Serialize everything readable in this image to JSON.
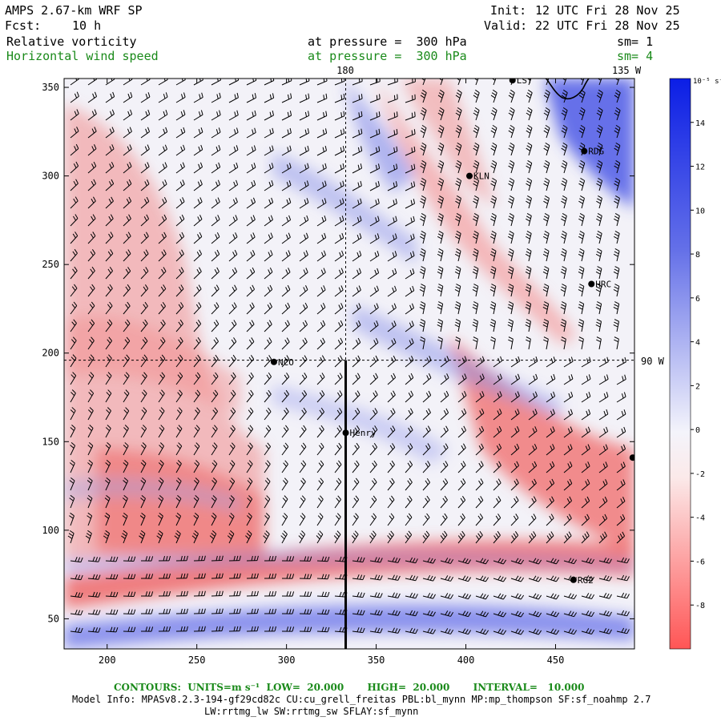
{
  "header": {
    "model_title": "AMPS 2.67-km WRF SP",
    "forecast_label": "Fcst:",
    "forecast_hours": "10 h",
    "init_label": "Init:",
    "init_time": "12 UTC Fri 28 Nov 25",
    "valid_label": "Valid:",
    "valid_time": "22 UTC Fri 28 Nov 25",
    "field1_name": "Relative vorticity",
    "field1_level": "at pressure =  300 hPa",
    "field1_smooth": "sm= 1",
    "field2_name": "Horizontal wind speed",
    "field2_level": "at pressure =  300 hPa",
    "field2_smooth": "sm= 4"
  },
  "map": {
    "lon_label_180": "180",
    "lon_label_135w": "135 W",
    "lon_label_90w": "90 W",
    "x_ticks": [
      "200",
      "250",
      "300",
      "350",
      "400",
      "450"
    ],
    "y_ticks": [
      "350",
      "300",
      "250",
      "200",
      "150",
      "100",
      "50"
    ],
    "x_range": [
      176,
      494
    ],
    "y_range": [
      33,
      355
    ],
    "stations": [
      {
        "name": "LST",
        "x": 426,
        "y": 354
      },
      {
        "name": "RDG",
        "x": 466,
        "y": 314
      },
      {
        "name": "KLN",
        "x": 402,
        "y": 300
      },
      {
        "name": "HRC",
        "x": 470,
        "y": 239
      },
      {
        "name": "NCO",
        "x": 293,
        "y": 195
      },
      {
        "name": "Henry",
        "x": 333,
        "y": 155
      },
      {
        "name": "",
        "x": 493,
        "y": 141
      },
      {
        "name": "RG2",
        "x": 460,
        "y": 72
      }
    ],
    "cross_section": {
      "x": 333,
      "y_start": 33,
      "y_end": 196
    },
    "reference_lines": {
      "lon180_x": 333,
      "lat_line_y": 196
    }
  },
  "colorbar": {
    "unit_label": "10⁻⁵ s⁻¹",
    "ticks": [
      "14",
      "12",
      "10",
      "8",
      "6",
      "4",
      "2",
      "0",
      "-2",
      "-4",
      "-6",
      "-8"
    ],
    "positive_color": "#0b1ee6",
    "negative_color": "#ff5555"
  },
  "footer": {
    "contours": "CONTOURS:  UNITS=m s⁻¹  LOW=  20.000       HIGH=  20.000       INTERVAL=   10.000",
    "model_info": "Model Info: MPASv8.2.3-194-gf29cd82c CU:cu_grell_freitas PBL:bl_mynn MP:mp_thompson SF:sf_noahmp 2.7",
    "model_info2": "LW:rrtmg_lw SW:rrtmg_sw SFLAY:sf_mynn"
  }
}
